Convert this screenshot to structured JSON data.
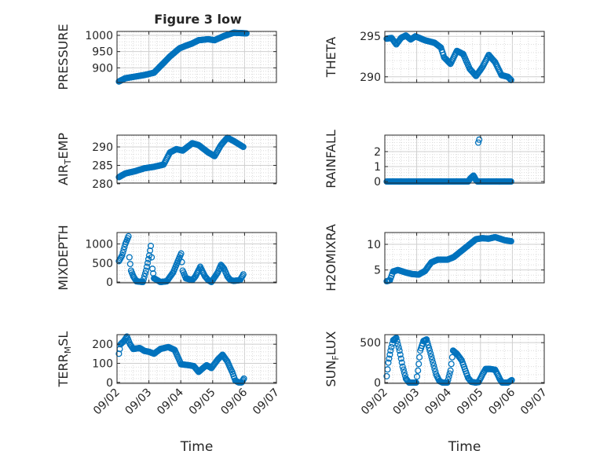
{
  "figure": {
    "title": "Figure 3 low",
    "marker_color": "#0072BD",
    "axes_color": "#262626"
  },
  "chart_data": [
    {
      "type": "scatter",
      "ylabel": "PRESSURE",
      "xlabel": "",
      "xlim": [
        "09/02",
        "09/07"
      ],
      "ylim": [
        855,
        1012
      ],
      "yticks": [
        {
          "value": 900,
          "label": "900"
        },
        {
          "value": 950,
          "label": "950"
        },
        {
          "value": 1000,
          "label": "1000"
        }
      ],
      "xticks": [],
      "grid": true,
      "keypoints": [
        [
          0.0,
          858
        ],
        [
          0.2,
          868
        ],
        [
          0.5,
          873
        ],
        [
          0.8,
          878
        ],
        [
          1.1,
          885
        ],
        [
          1.3,
          905
        ],
        [
          1.6,
          935
        ],
        [
          1.9,
          960
        ],
        [
          2.1,
          968
        ],
        [
          2.3,
          975
        ],
        [
          2.5,
          985
        ],
        [
          2.8,
          988
        ],
        [
          3.0,
          985
        ],
        [
          3.3,
          998
        ],
        [
          3.6,
          1008
        ],
        [
          4.0,
          1006
        ]
      ]
    },
    {
      "type": "scatter",
      "ylabel": "THETA",
      "xlabel": "",
      "xlim": [
        "09/02",
        "09/07"
      ],
      "ylim": [
        289.3,
        295.6
      ],
      "yticks": [
        {
          "value": 290,
          "label": "290"
        },
        {
          "value": 295,
          "label": "295"
        }
      ],
      "xticks": [],
      "grid": true,
      "keypoints": [
        [
          0.0,
          294.7
        ],
        [
          0.15,
          294.8
        ],
        [
          0.3,
          294.0
        ],
        [
          0.45,
          294.8
        ],
        [
          0.6,
          295.1
        ],
        [
          0.75,
          294.6
        ],
        [
          0.9,
          295.0
        ],
        [
          1.2,
          294.5
        ],
        [
          1.5,
          294.2
        ],
        [
          1.7,
          293.6
        ],
        [
          1.8,
          292.4
        ],
        [
          2.0,
          291.6
        ],
        [
          2.2,
          293.2
        ],
        [
          2.4,
          292.8
        ],
        [
          2.6,
          291.0
        ],
        [
          2.8,
          290.1
        ],
        [
          3.0,
          291.2
        ],
        [
          3.2,
          292.7
        ],
        [
          3.4,
          291.8
        ],
        [
          3.6,
          290.2
        ],
        [
          3.8,
          290.0
        ],
        [
          3.9,
          289.6
        ]
      ]
    },
    {
      "type": "scatter",
      "ylabel": "AIR_TEMP",
      "xlabel": "",
      "xlim": [
        "09/02",
        "09/07"
      ],
      "ylim": [
        280.2,
        293.2
      ],
      "yticks": [
        {
          "value": 280,
          "label": "280"
        },
        {
          "value": 285,
          "label": "285"
        },
        {
          "value": 290,
          "label": "290"
        }
      ],
      "xticks": [],
      "grid": true,
      "keypoints": [
        [
          0.0,
          281.8
        ],
        [
          0.2,
          282.8
        ],
        [
          0.5,
          283.4
        ],
        [
          0.8,
          284.2
        ],
        [
          1.1,
          284.6
        ],
        [
          1.4,
          285.2
        ],
        [
          1.6,
          288.5
        ],
        [
          1.8,
          289.4
        ],
        [
          2.0,
          289.0
        ],
        [
          2.3,
          291.0
        ],
        [
          2.5,
          290.5
        ],
        [
          2.8,
          288.5
        ],
        [
          3.0,
          287.5
        ],
        [
          3.2,
          290.5
        ],
        [
          3.4,
          292.5
        ],
        [
          3.6,
          291.6
        ],
        [
          3.9,
          290.0
        ]
      ]
    },
    {
      "type": "scatter",
      "ylabel": "RAINFALL",
      "xlabel": "",
      "xlim": [
        "09/02",
        "09/07"
      ],
      "ylim": [
        -0.1,
        3.1
      ],
      "yticks": [
        {
          "value": 0,
          "label": "0"
        },
        {
          "value": 1,
          "label": "1"
        },
        {
          "value": 2,
          "label": "2"
        }
      ],
      "xticks": [],
      "grid": true,
      "keypoints": [
        [
          0.0,
          0
        ],
        [
          2.55,
          0
        ],
        [
          2.62,
          0.2
        ],
        [
          2.72,
          0.4
        ],
        [
          2.8,
          0.1
        ],
        [
          2.85,
          0
        ],
        [
          3.9,
          0
        ]
      ],
      "extra_points": [
        [
          2.87,
          2.6
        ],
        [
          2.9,
          2.8
        ]
      ]
    },
    {
      "type": "scatter",
      "ylabel": "MIXDEPTH",
      "xlabel": "",
      "xlim": [
        "09/02",
        "09/07"
      ],
      "ylim": [
        -20,
        1300
      ],
      "yticks": [
        {
          "value": 0,
          "label": "0"
        },
        {
          "value": 500,
          "label": "500"
        },
        {
          "value": 1000,
          "label": "1000"
        }
      ],
      "xticks": [],
      "grid": true,
      "keypoints": [
        [
          0.0,
          550
        ],
        [
          0.1,
          700
        ],
        [
          0.2,
          1000
        ],
        [
          0.3,
          1200
        ],
        [
          0.33,
          650
        ],
        [
          0.38,
          300
        ],
        [
          0.45,
          150
        ],
        [
          0.55,
          20
        ],
        [
          0.75,
          0
        ],
        [
          0.85,
          300
        ],
        [
          0.95,
          700
        ],
        [
          1.0,
          950
        ],
        [
          1.05,
          350
        ],
        [
          1.1,
          100
        ],
        [
          1.3,
          0
        ],
        [
          1.5,
          20
        ],
        [
          1.7,
          250
        ],
        [
          1.85,
          550
        ],
        [
          1.95,
          750
        ],
        [
          2.0,
          300
        ],
        [
          2.1,
          100
        ],
        [
          2.3,
          50
        ],
        [
          2.4,
          150
        ],
        [
          2.55,
          400
        ],
        [
          2.7,
          150
        ],
        [
          2.8,
          50
        ],
        [
          2.9,
          0
        ],
        [
          3.1,
          250
        ],
        [
          3.2,
          450
        ],
        [
          3.3,
          350
        ],
        [
          3.4,
          150
        ],
        [
          3.5,
          50
        ],
        [
          3.6,
          30
        ],
        [
          3.8,
          50
        ],
        [
          3.9,
          200
        ]
      ]
    },
    {
      "type": "scatter",
      "ylabel": "H2OMIXRA",
      "xlabel": "",
      "xlim": [
        "09/02",
        "09/07"
      ],
      "ylim": [
        2.5,
        12.3
      ],
      "yticks": [
        {
          "value": 5,
          "label": "5"
        },
        {
          "value": 10,
          "label": "10"
        }
      ],
      "xticks": [],
      "grid": true,
      "keypoints": [
        [
          0.0,
          2.8
        ],
        [
          0.1,
          3.0
        ],
        [
          0.2,
          4.7
        ],
        [
          0.35,
          5.0
        ],
        [
          0.6,
          4.5
        ],
        [
          0.8,
          4.2
        ],
        [
          1.0,
          4.1
        ],
        [
          1.2,
          4.8
        ],
        [
          1.4,
          6.5
        ],
        [
          1.6,
          7.0
        ],
        [
          1.9,
          7.0
        ],
        [
          2.1,
          7.5
        ],
        [
          2.4,
          9.0
        ],
        [
          2.6,
          10.0
        ],
        [
          2.8,
          11.0
        ],
        [
          3.0,
          11.2
        ],
        [
          3.2,
          11.1
        ],
        [
          3.4,
          11.4
        ],
        [
          3.7,
          10.8
        ],
        [
          3.9,
          10.6
        ]
      ]
    },
    {
      "type": "scatter",
      "ylabel": "TERR_MSL",
      "xlabel": "Time",
      "xlim": [
        "09/02",
        "09/07"
      ],
      "ylim": [
        -5,
        250
      ],
      "yticks": [
        {
          "value": 0,
          "label": "0"
        },
        {
          "value": 100,
          "label": "100"
        },
        {
          "value": 200,
          "label": "200"
        }
      ],
      "xticks": [
        "09/02",
        "09/03",
        "09/04",
        "09/05",
        "09/06",
        "09/07"
      ],
      "grid": true,
      "keypoints": [
        [
          0.0,
          150
        ],
        [
          0.05,
          200
        ],
        [
          0.15,
          215
        ],
        [
          0.25,
          240
        ],
        [
          0.35,
          200
        ],
        [
          0.45,
          175
        ],
        [
          0.65,
          180
        ],
        [
          0.8,
          165
        ],
        [
          0.95,
          160
        ],
        [
          1.1,
          150
        ],
        [
          1.3,
          175
        ],
        [
          1.55,
          185
        ],
        [
          1.75,
          170
        ],
        [
          1.95,
          95
        ],
        [
          2.2,
          90
        ],
        [
          2.35,
          85
        ],
        [
          2.5,
          55
        ],
        [
          2.6,
          70
        ],
        [
          2.75,
          90
        ],
        [
          2.9,
          75
        ],
        [
          3.1,
          120
        ],
        [
          3.25,
          145
        ],
        [
          3.4,
          110
        ],
        [
          3.55,
          55
        ],
        [
          3.65,
          10
        ],
        [
          3.75,
          0
        ],
        [
          3.85,
          0
        ],
        [
          3.92,
          20
        ]
      ]
    },
    {
      "type": "scatter",
      "ylabel": "SUN_FLUX",
      "xlabel": "Time",
      "xlim": [
        "09/02",
        "09/07"
      ],
      "ylim": [
        -10,
        600
      ],
      "yticks": [
        {
          "value": 0,
          "label": "0"
        },
        {
          "value": 500,
          "label": "500"
        }
      ],
      "xticks": [
        "09/02",
        "09/03",
        "09/04",
        "09/05",
        "09/06",
        "09/07"
      ],
      "grid": true,
      "keypoints": [
        [
          0.0,
          80
        ],
        [
          0.05,
          250
        ],
        [
          0.12,
          400
        ],
        [
          0.2,
          530
        ],
        [
          0.3,
          560
        ],
        [
          0.4,
          400
        ],
        [
          0.5,
          200
        ],
        [
          0.6,
          50
        ],
        [
          0.7,
          0
        ],
        [
          0.92,
          0
        ],
        [
          0.98,
          150
        ],
        [
          1.05,
          400
        ],
        [
          1.15,
          520
        ],
        [
          1.25,
          540
        ],
        [
          1.35,
          400
        ],
        [
          1.45,
          250
        ],
        [
          1.55,
          100
        ],
        [
          1.65,
          20
        ],
        [
          1.75,
          0
        ],
        [
          1.9,
          0
        ],
        [
          2.0,
          150
        ],
        [
          2.08,
          400
        ],
        [
          2.2,
          360
        ],
        [
          2.35,
          280
        ],
        [
          2.45,
          170
        ],
        [
          2.55,
          60
        ],
        [
          2.65,
          10
        ],
        [
          2.78,
          0
        ],
        [
          2.88,
          5
        ],
        [
          3.0,
          100
        ],
        [
          3.1,
          170
        ],
        [
          3.25,
          170
        ],
        [
          3.4,
          160
        ],
        [
          3.48,
          100
        ],
        [
          3.55,
          40
        ],
        [
          3.62,
          0
        ],
        [
          3.8,
          0
        ],
        [
          3.92,
          30
        ]
      ]
    }
  ]
}
